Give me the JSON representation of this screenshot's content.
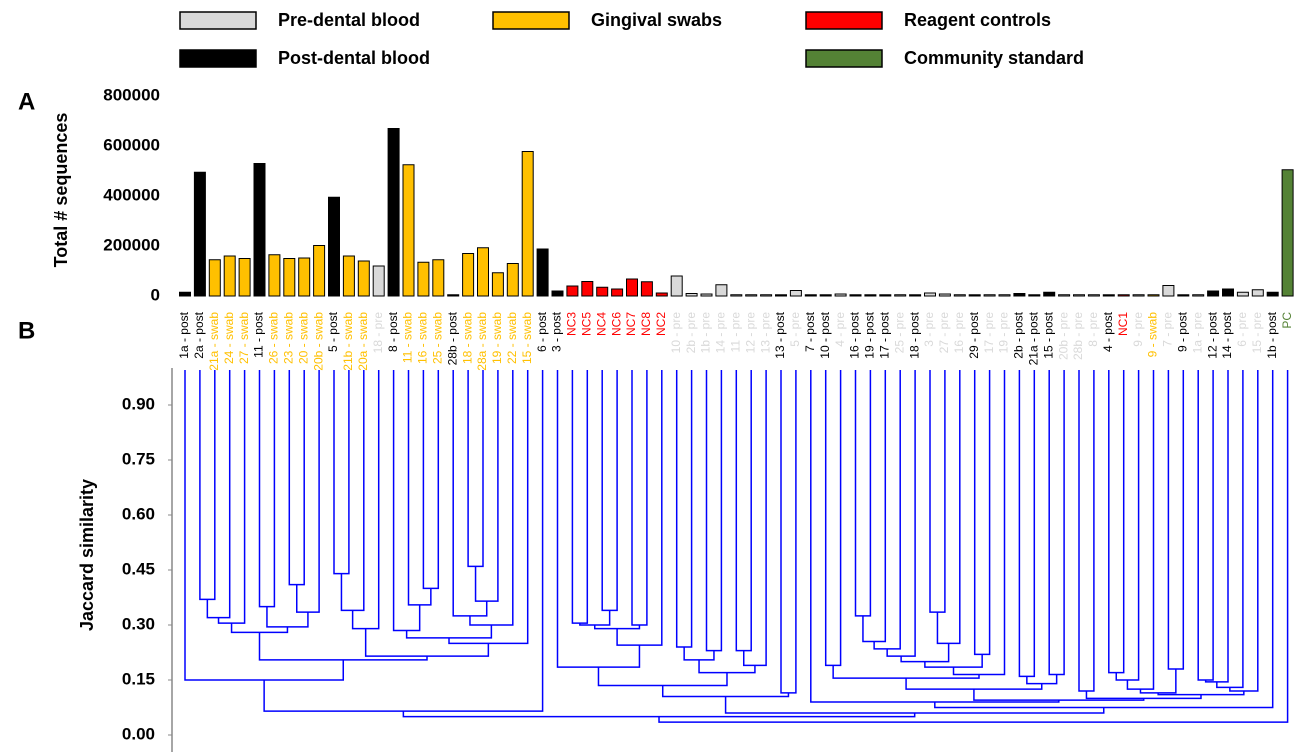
{
  "chart_data": [
    {
      "type": "bar",
      "panel": "A",
      "ylabel": "Total # sequences",
      "legend": [
        {
          "name": "Pre-dental blood",
          "color": "#d9d9d9"
        },
        {
          "name": "Post-dental blood",
          "color": "#000000"
        },
        {
          "name": "Gingival swabs",
          "color": "#ffc000"
        },
        {
          "name": "Reagent controls",
          "color": "#ff0000"
        },
        {
          "name": "Community standard",
          "color": "#548235"
        }
      ],
      "categories": [
        "1a - post",
        "2a - post",
        "21a - swab",
        "24 - swab",
        "27 - swab",
        "11 - post",
        "26 - swab",
        "23 - swab",
        "20 - swab",
        "20b - swab",
        "5 - post",
        "21b - swab",
        "20a - swab",
        "18 - pre",
        "8 - post",
        "11 - swab",
        "16 - swab",
        "25 - swab",
        "28b - post",
        "18 - swab",
        "28a - swab",
        "19 - swab",
        "22 - swab",
        "15 - swab",
        "6 - post",
        "3 - post",
        "NC3",
        "NC5",
        "NC4",
        "NC6",
        "NC7",
        "NC8",
        "NC2",
        "10 - pre",
        "2b - pre",
        "1b - pre",
        "14 - pre",
        "11 - pre",
        "12 - pre",
        "13 - pre",
        "13 - post",
        "5 - pre",
        "7 - post",
        "10 - post",
        "4 - pre",
        "16 - post",
        "19 - post",
        "17 - post",
        "25 - pre",
        "18 - post",
        "3 - pre",
        "27 - pre",
        "16 - pre",
        "29 - post",
        "17 - pre",
        "19 - pre",
        "2b - post",
        "21a - post",
        "15 - post",
        "20b - pre",
        "28b - pre",
        "8 - pre",
        "4 - post",
        "NC1",
        "9 - pre",
        "9 - swab",
        "7 - pre",
        "9 - post",
        "1a - pre",
        "12 - post",
        "14 - post",
        "6 - pre",
        "15 - pre",
        "1b - post",
        "PC"
      ],
      "values": [
        15000,
        495000,
        145000,
        160000,
        150000,
        530000,
        165000,
        150000,
        152000,
        202000,
        395000,
        160000,
        140000,
        120000,
        670000,
        525000,
        135000,
        145000,
        5000,
        170000,
        193000,
        93000,
        130000,
        578000,
        188000,
        20000,
        40000,
        58000,
        35000,
        28000,
        68000,
        57000,
        12000,
        80000,
        10000,
        8000,
        45000,
        5000,
        5000,
        5000,
        5000,
        22000,
        5000,
        5000,
        8000,
        5000,
        5000,
        5000,
        5000,
        5000,
        12000,
        8000,
        5000,
        5000,
        5000,
        5000,
        10000,
        5000,
        15000,
        5000,
        5000,
        5000,
        5000,
        5000,
        5000,
        5000,
        42000,
        5000,
        5000,
        20000,
        28000,
        15000,
        25000,
        15000,
        505000
      ],
      "colors": [
        "#000000",
        "#000000",
        "#ffc000",
        "#ffc000",
        "#ffc000",
        "#000000",
        "#ffc000",
        "#ffc000",
        "#ffc000",
        "#ffc000",
        "#000000",
        "#ffc000",
        "#ffc000",
        "#d9d9d9",
        "#000000",
        "#ffc000",
        "#ffc000",
        "#ffc000",
        "#000000",
        "#ffc000",
        "#ffc000",
        "#ffc000",
        "#ffc000",
        "#ffc000",
        "#000000",
        "#000000",
        "#ff0000",
        "#ff0000",
        "#ff0000",
        "#ff0000",
        "#ff0000",
        "#ff0000",
        "#ff0000",
        "#d9d9d9",
        "#d9d9d9",
        "#d9d9d9",
        "#d9d9d9",
        "#d9d9d9",
        "#d9d9d9",
        "#d9d9d9",
        "#000000",
        "#d9d9d9",
        "#000000",
        "#000000",
        "#d9d9d9",
        "#000000",
        "#000000",
        "#000000",
        "#d9d9d9",
        "#000000",
        "#d9d9d9",
        "#d9d9d9",
        "#d9d9d9",
        "#000000",
        "#d9d9d9",
        "#d9d9d9",
        "#000000",
        "#000000",
        "#000000",
        "#d9d9d9",
        "#d9d9d9",
        "#d9d9d9",
        "#000000",
        "#ff0000",
        "#d9d9d9",
        "#ffc000",
        "#d9d9d9",
        "#000000",
        "#d9d9d9",
        "#000000",
        "#000000",
        "#d9d9d9",
        "#d9d9d9",
        "#000000",
        "#548235"
      ],
      "ylim": [
        0,
        800000
      ],
      "yticks": [
        0,
        200000,
        400000,
        600000,
        800000
      ]
    },
    {
      "type": "dendrogram",
      "panel": "B",
      "ylabel": "Jaccard similarity",
      "color": "#0000ff",
      "ylim": [
        0,
        0.9
      ],
      "yticks": [
        {
          "value": 0,
          "label": "0.00"
        },
        {
          "value": 0.15,
          "label": "0.15"
        },
        {
          "value": 0.3,
          "label": "0.30"
        },
        {
          "value": 0.45,
          "label": "0.45"
        },
        {
          "value": 0.6,
          "label": "0.60"
        },
        {
          "value": 0.75,
          "label": "0.75"
        },
        {
          "value": 0.9,
          "label": "0.90"
        }
      ],
      "merges": [
        [
          1,
          2,
          0.37
        ],
        [
          1,
          3,
          0.32
        ],
        [
          1,
          4,
          0.305
        ],
        [
          5,
          6,
          0.35
        ],
        [
          7,
          8,
          0.41
        ],
        [
          7,
          9,
          0.335
        ],
        [
          5,
          7,
          0.295
        ],
        [
          1,
          5,
          0.28
        ],
        [
          10,
          11,
          0.44
        ],
        [
          10,
          12,
          0.34
        ],
        [
          10,
          13,
          0.29
        ],
        [
          16,
          17,
          0.4
        ],
        [
          15,
          16,
          0.355
        ],
        [
          14,
          15,
          0.285
        ],
        [
          19,
          20,
          0.46
        ],
        [
          19,
          21,
          0.365
        ],
        [
          18,
          19,
          0.325
        ],
        [
          18,
          22,
          0.3
        ],
        [
          14,
          18,
          0.265
        ],
        [
          14,
          23,
          0.25
        ],
        [
          10,
          14,
          0.215
        ],
        [
          1,
          10,
          0.205
        ],
        [
          0,
          1,
          0.15
        ],
        [
          0,
          24,
          0.065
        ],
        [
          26,
          27,
          0.305
        ],
        [
          28,
          29,
          0.34
        ],
        [
          26,
          28,
          0.3
        ],
        [
          30,
          31,
          0.3
        ],
        [
          26,
          30,
          0.29
        ],
        [
          26,
          32,
          0.245
        ],
        [
          25,
          26,
          0.185
        ],
        [
          33,
          34,
          0.24
        ],
        [
          35,
          36,
          0.23
        ],
        [
          33,
          35,
          0.205
        ],
        [
          37,
          38,
          0.23
        ],
        [
          37,
          39,
          0.19
        ],
        [
          33,
          37,
          0.17
        ],
        [
          25,
          33,
          0.135
        ],
        [
          40,
          41,
          0.115
        ],
        [
          25,
          40,
          0.105
        ],
        [
          45,
          46,
          0.325
        ],
        [
          45,
          47,
          0.255
        ],
        [
          45,
          48,
          0.235
        ],
        [
          45,
          49,
          0.215
        ],
        [
          50,
          51,
          0.335
        ],
        [
          50,
          52,
          0.25
        ],
        [
          45,
          50,
          0.2
        ],
        [
          53,
          54,
          0.22
        ],
        [
          45,
          53,
          0.185
        ],
        [
          45,
          55,
          0.165
        ],
        [
          43,
          44,
          0.19
        ],
        [
          43,
          45,
          0.155
        ],
        [
          56,
          57,
          0.16
        ],
        [
          58,
          59,
          0.165
        ],
        [
          56,
          58,
          0.14
        ],
        [
          43,
          56,
          0.125
        ],
        [
          60,
          61,
          0.12
        ],
        [
          62,
          63,
          0.17
        ],
        [
          62,
          64,
          0.15
        ],
        [
          62,
          65,
          0.125
        ],
        [
          66,
          67,
          0.18
        ],
        [
          62,
          66,
          0.115
        ],
        [
          68,
          69,
          0.15
        ],
        [
          68,
          70,
          0.145
        ],
        [
          68,
          71,
          0.13
        ],
        [
          68,
          72,
          0.12
        ],
        [
          62,
          68,
          0.11
        ],
        [
          60,
          62,
          0.1
        ],
        [
          43,
          60,
          0.095
        ],
        [
          42,
          43,
          0.09
        ],
        [
          42,
          73,
          0.075
        ],
        [
          25,
          42,
          0.06
        ],
        [
          0,
          25,
          0.05
        ],
        [
          0,
          74,
          0.035
        ]
      ]
    }
  ]
}
